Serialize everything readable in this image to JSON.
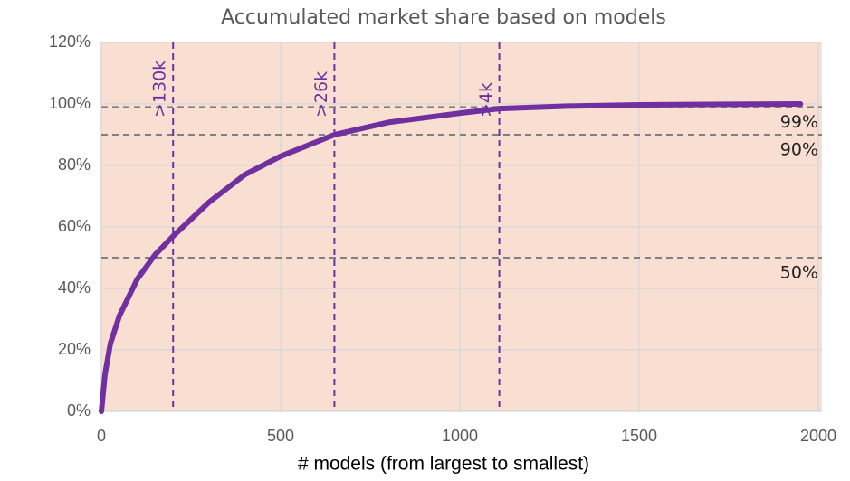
{
  "chart_data": {
    "type": "line",
    "title": "Accumulated market share based on models",
    "x_label": "# models (from largest to smallest)",
    "x": [
      0,
      10,
      25,
      50,
      100,
      150,
      200,
      300,
      400,
      500,
      650,
      800,
      1000,
      1110,
      1300,
      1500,
      1750,
      1950
    ],
    "series": [
      {
        "name": "Accumulated market share",
        "color": "#7030a0",
        "values": [
          0,
          12,
          22,
          31,
          43,
          51,
          57,
          68,
          77,
          83,
          90,
          94,
          97,
          98.5,
          99.3,
          99.7,
          99.9,
          100
        ]
      }
    ],
    "xlim": [
      0,
      2010
    ],
    "xticks": [
      0,
      500,
      1000,
      1500,
      2000
    ],
    "ylim": [
      0,
      120
    ],
    "yticks": [
      {
        "value": 0,
        "label": "0%"
      },
      {
        "value": 20,
        "label": "20%"
      },
      {
        "value": 40,
        "label": "40%"
      },
      {
        "value": 60,
        "label": "60%"
      },
      {
        "value": 80,
        "label": "80%"
      },
      {
        "value": 100,
        "label": "100%"
      },
      {
        "value": 120,
        "label": "120%"
      }
    ],
    "grid": true,
    "plot_background": "#f9dfd1",
    "hlines": [
      {
        "value": 99,
        "label": "99%"
      },
      {
        "value": 90,
        "label": "90%"
      },
      {
        "value": 50,
        "label": "50%"
      }
    ],
    "hline_color": "#808080",
    "vlines": [
      {
        "value": 200,
        "label": ">130k"
      },
      {
        "value": 650,
        "label": ">26k"
      },
      {
        "value": 1110,
        "label": ">4k"
      }
    ],
    "vline_color": "#7030a0"
  }
}
